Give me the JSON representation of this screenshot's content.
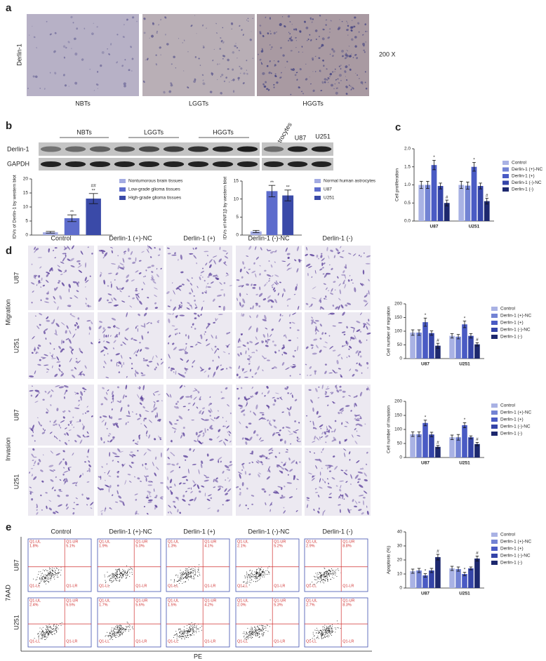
{
  "panel_labels": [
    "a",
    "b",
    "c",
    "d",
    "e"
  ],
  "panel_a": {
    "ylabel": "Derlin-1",
    "magnification": "200 X",
    "columns": [
      "NBTs",
      "LGGTs",
      "HGGTs"
    ]
  },
  "panel_b_blot": {
    "groups": [
      "NBTs",
      "LGGTs",
      "HGGTs"
    ],
    "lines": [
      "Astrocytes",
      "U87",
      "U251"
    ],
    "rows": [
      "Derlin-1",
      "GAPDH"
    ]
  },
  "panel_d": {
    "columns": [
      "Control",
      "Derlin-1 (+)-NC",
      "Derlin-1 (+)",
      "Derlin-1 (-)-NC",
      "Derlin-1 (-)"
    ],
    "rows": [
      "U87",
      "U251",
      "U87",
      "U251"
    ],
    "groups": [
      "Migration",
      "Invasion"
    ]
  },
  "panel_e": {
    "columns": [
      "Control",
      "Derlin-1 (+)-NC",
      "Derlin-1 (+)",
      "Derlin-1 (-)-NC",
      "Derlin-1 (-)"
    ],
    "rows": [
      "U87",
      "U251"
    ],
    "ylabel": "7AAD",
    "xlabel": "PE",
    "quadrants": [
      "Q1-UL",
      "Q1-UR",
      "Q1-LL",
      "Q1-LR"
    ],
    "percentages": [
      [
        [
          "1.8%",
          "5.1%"
        ],
        [
          "1.9%",
          "5.0%"
        ],
        [
          "1.3%",
          "4.1%"
        ],
        [
          "2.1%",
          "5.2%"
        ],
        [
          "2.9%",
          "8.8%"
        ]
      ],
      [
        [
          "2.4%",
          "5.5%"
        ],
        [
          "1.7%",
          "5.6%"
        ],
        [
          "1.5%",
          "4.2%"
        ],
        [
          "2.0%",
          "5.3%"
        ],
        [
          "2.7%",
          "8.3%"
        ]
      ]
    ]
  },
  "chart_data": [
    {
      "type": "bar",
      "ylabel": "IDVs of Derlin-1 by western blot",
      "categories": [
        null
      ],
      "ylim": [
        0,
        20
      ],
      "yticks": [
        0,
        5,
        10,
        15,
        20
      ],
      "series": [
        {
          "name": "Nontumorous brain tissues",
          "color": "#a3abe2",
          "values": [
            1
          ],
          "errors": [
            0.3
          ]
        },
        {
          "name": "Low-grade glioma tissues",
          "color": "#5d6ccc",
          "values": [
            6
          ],
          "errors": [
            1.2
          ],
          "annotations": [
            [
              "**"
            ]
          ]
        },
        {
          "name": "High-grade glioma tissues",
          "color": "#3a4aa8",
          "values": [
            13
          ],
          "errors": [
            1.8
          ],
          "annotations": [
            [
              "##",
              "**"
            ]
          ]
        }
      ]
    },
    {
      "type": "bar",
      "ylabel": "IDVs of HNF1β by western blot",
      "categories": [
        null
      ],
      "ylim": [
        0,
        15
      ],
      "yticks": [
        0,
        5,
        10,
        15
      ],
      "series": [
        {
          "name": "Normal human astrocytes",
          "color": "#a3abe2",
          "values": [
            1
          ],
          "errors": [
            0.3
          ]
        },
        {
          "name": "U87",
          "color": "#5d6ccc",
          "values": [
            12.2
          ],
          "errors": [
            1.6
          ],
          "annotations": [
            [
              "**"
            ]
          ]
        },
        {
          "name": "U251",
          "color": "#3a4aa8",
          "values": [
            11
          ],
          "errors": [
            1.5
          ],
          "annotations": [
            [
              "**"
            ]
          ]
        }
      ]
    },
    {
      "type": "bar",
      "ylabel": "Cell proliferation",
      "categories": [
        "U87",
        "U251"
      ],
      "ylim": [
        0,
        2
      ],
      "yticks": [
        {
          "value": 0,
          "label": "0.0"
        },
        0.5,
        {
          "value": 1,
          "label": "1.0"
        },
        1.5,
        {
          "value": 2,
          "label": "2.0"
        }
      ],
      "series": [
        {
          "name": "Control",
          "color": "#a9b2e4",
          "values": [
            1.0,
            1.0
          ],
          "errors": [
            0.1,
            0.1
          ]
        },
        {
          "name": "Derlin-1 (+)-NC",
          "color": "#7383d4",
          "values": [
            1.0,
            0.98
          ],
          "errors": [
            0.1,
            0.1
          ]
        },
        {
          "name": "Derlin-1 (+)",
          "color": "#4a5bc4",
          "values": [
            1.55,
            1.5
          ],
          "errors": [
            0.13,
            0.12
          ],
          "annotations": [
            [
              "*"
            ],
            [
              "*"
            ]
          ]
        },
        {
          "name": "Derlin-1 (-)-NC",
          "color": "#3444a8",
          "values": [
            0.97,
            0.97
          ],
          "errors": [
            0.08,
            0.08
          ]
        },
        {
          "name": "Derlin-1 (-)",
          "color": "#1d286e",
          "values": [
            0.5,
            0.55
          ],
          "errors": [
            0.08,
            0.08
          ],
          "annotations": [
            [
              "#"
            ],
            [
              "#"
            ]
          ]
        }
      ]
    },
    {
      "type": "bar",
      "ylabel": "Cell number of migration",
      "categories": [
        "U87",
        "U251"
      ],
      "ylim": [
        0,
        200
      ],
      "yticks": [
        0,
        50,
        100,
        150,
        200
      ],
      "series": [
        {
          "name": "Control",
          "color": "#a9b2e4",
          "values": [
            95,
            83
          ],
          "errors": [
            10,
            8
          ]
        },
        {
          "name": "Derlin-1 (+)-NC",
          "color": "#7383d4",
          "values": [
            95,
            80
          ],
          "errors": [
            10,
            8
          ]
        },
        {
          "name": "Derlin-1 (+)",
          "color": "#4a5bc4",
          "values": [
            133,
            125
          ],
          "errors": [
            15,
            12
          ],
          "annotations": [
            [
              "*"
            ],
            [
              "*"
            ]
          ]
        },
        {
          "name": "Derlin-1 (-)-NC",
          "color": "#3444a8",
          "values": [
            93,
            83
          ],
          "errors": [
            8,
            8
          ]
        },
        {
          "name": "Derlin-1 (-)",
          "color": "#1d286e",
          "values": [
            47,
            52
          ],
          "errors": [
            9,
            6
          ],
          "annotations": [
            [
              "#"
            ],
            [
              "#"
            ]
          ]
        }
      ]
    },
    {
      "type": "bar",
      "ylabel": "Cell number of invasion",
      "categories": [
        "U87",
        "U251"
      ],
      "ylim": [
        0,
        200
      ],
      "yticks": [
        0,
        50,
        100,
        150,
        200
      ],
      "series": [
        {
          "name": "Control",
          "color": "#a9b2e4",
          "values": [
            83,
            72
          ],
          "errors": [
            8,
            8
          ]
        },
        {
          "name": "Derlin-1 (+)-NC",
          "color": "#7383d4",
          "values": [
            83,
            72
          ],
          "errors": [
            8,
            10
          ]
        },
        {
          "name": "Derlin-1 (+)",
          "color": "#4a5bc4",
          "values": [
            123,
            115
          ],
          "errors": [
            10,
            9
          ],
          "annotations": [
            [
              "*"
            ],
            [
              "*"
            ]
          ]
        },
        {
          "name": "Derlin-1 (-)-NC",
          "color": "#3444a8",
          "values": [
            82,
            72
          ],
          "errors": [
            8,
            5
          ]
        },
        {
          "name": "Derlin-1 (-)",
          "color": "#1d286e",
          "values": [
            38,
            48
          ],
          "errors": [
            5,
            6
          ],
          "annotations": [
            [
              "#"
            ],
            [
              "#"
            ]
          ]
        }
      ]
    },
    {
      "type": "bar",
      "ylabel": "Apoptosis (%)",
      "categories": [
        "U87",
        "U251"
      ],
      "ylim": [
        0,
        40
      ],
      "yticks": [
        0,
        10,
        20,
        30,
        40
      ],
      "series": [
        {
          "name": "Control",
          "color": "#a9b2e4",
          "values": [
            12,
            14
          ],
          "errors": [
            1.5,
            1.5
          ]
        },
        {
          "name": "Derlin-1 (+)-NC",
          "color": "#7383d4",
          "values": [
            12.5,
            13.5
          ],
          "errors": [
            1.5,
            1.5
          ]
        },
        {
          "name": "Derlin-1 (+)",
          "color": "#4a5bc4",
          "values": [
            9,
            10
          ],
          "errors": [
            1.2,
            1.2
          ],
          "annotations": [
            [
              "*"
            ],
            [
              "*"
            ]
          ]
        },
        {
          "name": "Derlin-1 (-)-NC",
          "color": "#3444a8",
          "values": [
            12.5,
            14
          ],
          "errors": [
            1.5,
            1
          ]
        },
        {
          "name": "Derlin-1 (-)",
          "color": "#1d286e",
          "values": [
            22,
            21
          ],
          "errors": [
            2,
            1.8
          ],
          "annotations": [
            [
              "#"
            ],
            [
              "#"
            ]
          ]
        }
      ]
    }
  ]
}
